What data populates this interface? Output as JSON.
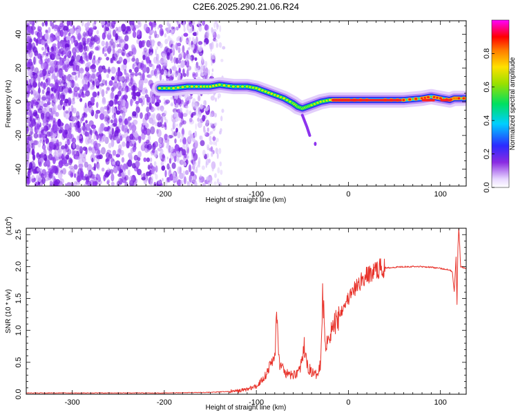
{
  "title": "C2E6.2025.290.21.06.R24",
  "chart_data": [
    {
      "type": "heatmap",
      "xlabel": "Height of straight line (km)",
      "ylabel": "Frequency (Hz)",
      "xlim": [
        -350,
        128
      ],
      "ylim": [
        -50,
        48
      ],
      "x_ticks": [
        -300,
        -200,
        -100,
        0,
        100
      ],
      "y_ticks": [
        -40,
        -20,
        0,
        20,
        40
      ],
      "x_tick_labels": [
        "-300",
        "-200",
        "-100",
        "0",
        "100"
      ],
      "y_tick_labels": [
        "-40",
        "-20",
        "0",
        "20",
        "40"
      ],
      "colorbar": {
        "label": "Normalized spectral amplitude",
        "range": [
          0,
          1
        ],
        "ticks": [
          0.0,
          0.2,
          0.4,
          0.6,
          0.8
        ],
        "tick_labels": [
          "0.0",
          "0.2",
          "0.4",
          "0.6",
          "0.8"
        ]
      },
      "ridge": {
        "x": [
          -205,
          -190,
          -175,
          -160,
          -150,
          -140,
          -125,
          -110,
          -100,
          -90,
          -80,
          -70,
          -60,
          -55,
          -50,
          -45,
          -40,
          -30,
          -20,
          -10,
          0,
          20,
          40,
          60,
          80,
          90,
          100,
          110,
          115,
          120,
          128
        ],
        "y": [
          8,
          8,
          9,
          9,
          9,
          10,
          9,
          9,
          8,
          6,
          4,
          2,
          -1,
          -3,
          -4,
          -3,
          -2,
          0,
          1,
          1,
          1,
          1,
          1,
          1,
          2,
          3,
          2,
          1,
          2,
          2,
          2
        ]
      }
    },
    {
      "type": "line",
      "xlabel": "Height of straight line (km)",
      "ylabel": "SNR (10 * v/v)",
      "exponent_label": "(x10",
      "exponent_power": "4",
      "exponent_close": ")",
      "xlim": [
        -350,
        128
      ],
      "ylim": [
        0,
        2.6
      ],
      "x_ticks": [
        -300,
        -200,
        -100,
        0,
        100
      ],
      "y_ticks": [
        0.0,
        0.5,
        1.0,
        1.5,
        2.0,
        2.5
      ],
      "x_tick_labels": [
        "-300",
        "-200",
        "-100",
        "0",
        "100"
      ],
      "y_tick_labels": [
        "0.0",
        "0.5",
        "1.0",
        "1.5",
        "2.0",
        "2.5"
      ],
      "series": [
        {
          "color": "#e8322a",
          "x": [
            -350,
            -200,
            -150,
            -120,
            -110,
            -100,
            -90,
            -85,
            -80,
            -78,
            -75,
            -70,
            -65,
            -60,
            -55,
            -50,
            -48,
            -45,
            -40,
            -35,
            -30,
            -28,
            -25,
            -20,
            -15,
            -10,
            -5,
            0,
            5,
            10,
            15,
            20,
            25,
            30,
            35,
            40,
            50,
            60,
            70,
            80,
            90,
            100,
            105,
            110,
            113,
            115,
            117,
            118,
            119,
            120,
            122,
            125,
            128
          ],
          "y": [
            0.02,
            0.02,
            0.03,
            0.05,
            0.08,
            0.12,
            0.3,
            0.45,
            0.6,
            1.2,
            0.5,
            0.35,
            0.3,
            0.3,
            0.35,
            0.5,
            0.75,
            0.45,
            0.35,
            0.3,
            0.5,
            1.6,
            0.8,
            0.95,
            1.1,
            1.25,
            1.4,
            1.5,
            1.6,
            1.7,
            1.8,
            1.85,
            1.9,
            1.95,
            1.97,
            1.98,
            1.99,
            2.0,
            2.0,
            2.0,
            1.99,
            1.97,
            1.96,
            1.95,
            1.92,
            1.6,
            2.15,
            1.4,
            2.3,
            2.6,
            2.0,
            1.98,
            1.98
          ]
        }
      ]
    }
  ]
}
